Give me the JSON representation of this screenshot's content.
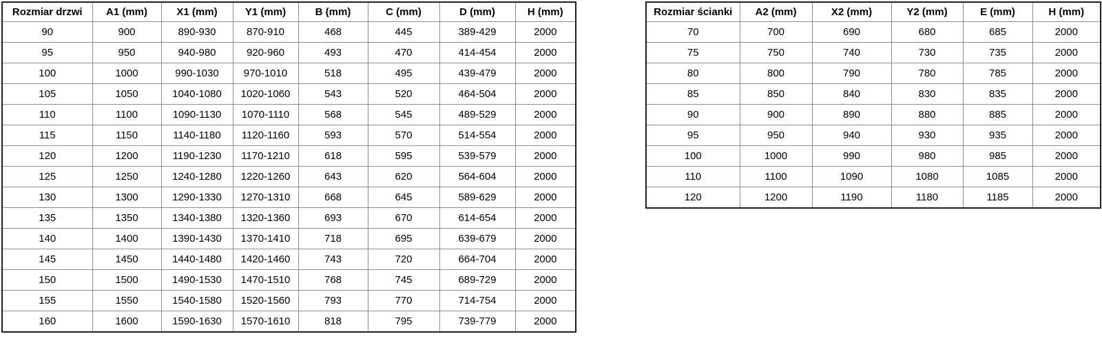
{
  "colors": {
    "outer_border": "#1f1f1f",
    "inner_border": "#8c8c8c",
    "text": "#000000",
    "background": "#ffffff"
  },
  "door_table": {
    "headers": [
      "Rozmiar drzwi",
      "A1 (mm)",
      "X1 (mm)",
      "Y1 (mm)",
      "B (mm)",
      "C (mm)",
      "D (mm)",
      "H (mm)"
    ],
    "rows": [
      [
        "90",
        "900",
        "890-930",
        "870-910",
        "468",
        "445",
        "389-429",
        "2000"
      ],
      [
        "95",
        "950",
        "940-980",
        "920-960",
        "493",
        "470",
        "414-454",
        "2000"
      ],
      [
        "100",
        "1000",
        "990-1030",
        "970-1010",
        "518",
        "495",
        "439-479",
        "2000"
      ],
      [
        "105",
        "1050",
        "1040-1080",
        "1020-1060",
        "543",
        "520",
        "464-504",
        "2000"
      ],
      [
        "110",
        "1100",
        "1090-1130",
        "1070-1110",
        "568",
        "545",
        "489-529",
        "2000"
      ],
      [
        "115",
        "1150",
        "1140-1180",
        "1120-1160",
        "593",
        "570",
        "514-554",
        "2000"
      ],
      [
        "120",
        "1200",
        "1190-1230",
        "1170-1210",
        "618",
        "595",
        "539-579",
        "2000"
      ],
      [
        "125",
        "1250",
        "1240-1280",
        "1220-1260",
        "643",
        "620",
        "564-604",
        "2000"
      ],
      [
        "130",
        "1300",
        "1290-1330",
        "1270-1310",
        "668",
        "645",
        "589-629",
        "2000"
      ],
      [
        "135",
        "1350",
        "1340-1380",
        "1320-1360",
        "693",
        "670",
        "614-654",
        "2000"
      ],
      [
        "140",
        "1400",
        "1390-1430",
        "1370-1410",
        "718",
        "695",
        "639-679",
        "2000"
      ],
      [
        "145",
        "1450",
        "1440-1480",
        "1420-1460",
        "743",
        "720",
        "664-704",
        "2000"
      ],
      [
        "150",
        "1500",
        "1490-1530",
        "1470-1510",
        "768",
        "745",
        "689-729",
        "2000"
      ],
      [
        "155",
        "1550",
        "1540-1580",
        "1520-1560",
        "793",
        "770",
        "714-754",
        "2000"
      ],
      [
        "160",
        "1600",
        "1590-1630",
        "1570-1610",
        "818",
        "795",
        "739-779",
        "2000"
      ]
    ]
  },
  "wall_table": {
    "headers": [
      "Rozmiar ścianki",
      "A2 (mm)",
      "X2 (mm)",
      "Y2 (mm)",
      "E (mm)",
      "H (mm)"
    ],
    "rows": [
      [
        "70",
        "700",
        "690",
        "680",
        "685",
        "2000"
      ],
      [
        "75",
        "750",
        "740",
        "730",
        "735",
        "2000"
      ],
      [
        "80",
        "800",
        "790",
        "780",
        "785",
        "2000"
      ],
      [
        "85",
        "850",
        "840",
        "830",
        "835",
        "2000"
      ],
      [
        "90",
        "900",
        "890",
        "880",
        "885",
        "2000"
      ],
      [
        "95",
        "950",
        "940",
        "930",
        "935",
        "2000"
      ],
      [
        "100",
        "1000",
        "990",
        "980",
        "985",
        "2000"
      ],
      [
        "110",
        "1100",
        "1090",
        "1080",
        "1085",
        "2000"
      ],
      [
        "120",
        "1200",
        "1190",
        "1180",
        "1185",
        "2000"
      ]
    ]
  }
}
